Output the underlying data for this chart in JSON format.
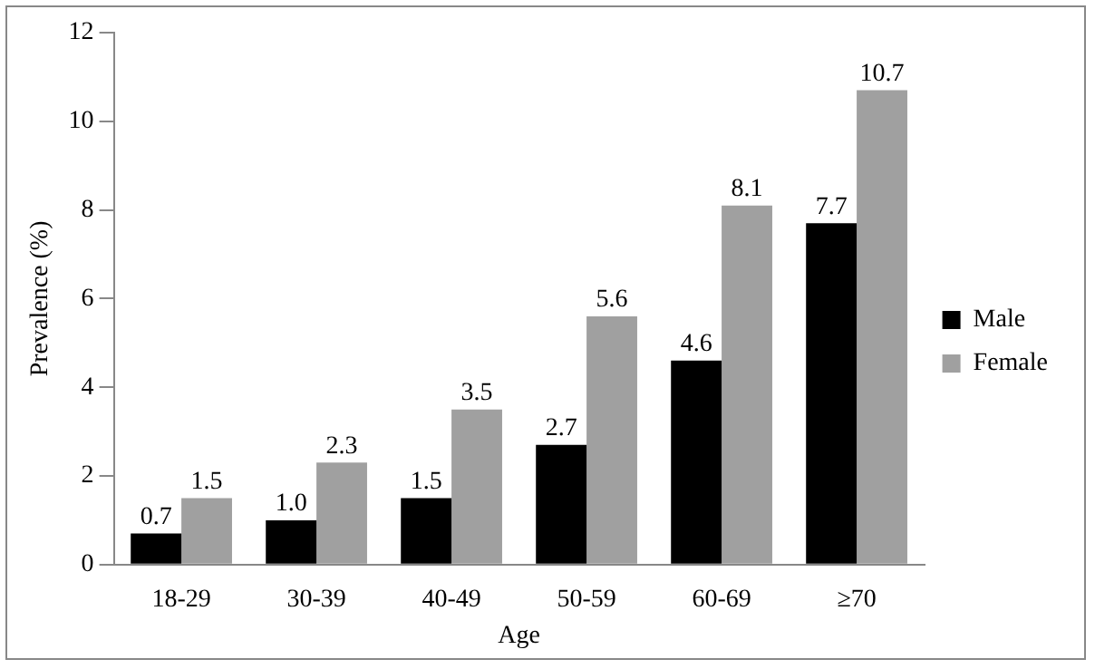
{
  "chart_data": {
    "type": "bar",
    "xlabel": "Age",
    "ylabel": "Prevalence (%)",
    "categories": [
      "18-29",
      "30-39",
      "40-49",
      "50-59",
      "60-69",
      "≥70"
    ],
    "series": [
      {
        "name": "Male",
        "color": "#000000",
        "values": [
          0.7,
          1.0,
          1.5,
          2.7,
          4.6,
          7.7
        ],
        "value_labels": [
          "0.7",
          "1.0",
          "1.5",
          "2.7",
          "4.6",
          "7.7"
        ]
      },
      {
        "name": "Female",
        "color": "#a0a0a0",
        "values": [
          1.5,
          2.3,
          3.5,
          5.6,
          8.1,
          10.7
        ],
        "value_labels": [
          "1.5",
          "2.3",
          "3.5",
          "5.6",
          "8.1",
          "10.7"
        ]
      }
    ],
    "ylim": [
      0,
      12
    ],
    "yticks": [
      0,
      2,
      4,
      6,
      8,
      10,
      12
    ],
    "grid": false,
    "legend": "right"
  }
}
